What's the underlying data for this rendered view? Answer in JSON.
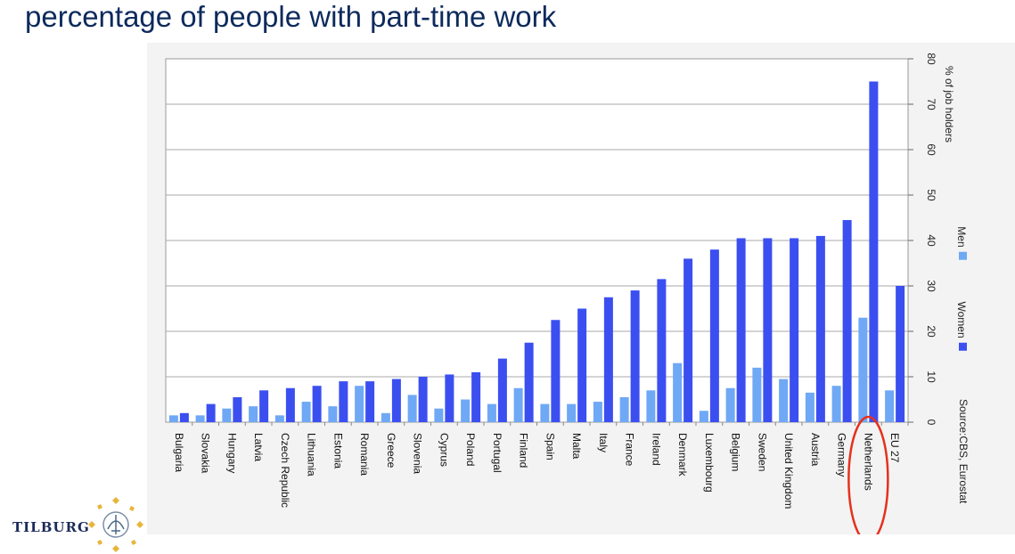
{
  "slide": {
    "title": "percentage of people with part-time work",
    "logo_text": "TILBURG"
  },
  "colors": {
    "men": "#6fa8f5",
    "women": "#3b4ff0",
    "title": "#0d2a5c",
    "highlight_circle": "#e5311d"
  },
  "chart_data": {
    "type": "bar",
    "orientation": "vertical (rotated 90°)",
    "categories": [
      "Bulgaria",
      "Slovakia",
      "Hungary",
      "Latvia",
      "Czech Republic",
      "Lithuania",
      "Estonia",
      "Romania",
      "Greece",
      "Slovenia",
      "Cyprus",
      "Poland",
      "Portugal",
      "Finland",
      "Spain",
      "Malta",
      "Italy",
      "France",
      "Ireland",
      "Denmark",
      "Luxembourg",
      "Belgium",
      "Sweden",
      "United Kingdom",
      "Austria",
      "Germany",
      "Netherlands",
      "EU 27"
    ],
    "series": [
      {
        "name": "Men",
        "values": [
          1.5,
          1.5,
          3,
          3.5,
          1.5,
          4.5,
          3.5,
          8,
          2,
          6,
          3,
          5,
          4,
          7.5,
          4,
          4,
          4.5,
          5.5,
          7,
          13,
          2.5,
          7.5,
          12,
          9.5,
          6.5,
          8,
          23,
          7
        ]
      },
      {
        "name": "Women",
        "values": [
          2,
          4,
          5.5,
          7,
          7.5,
          8,
          9,
          9,
          9.5,
          10,
          10.5,
          11,
          14,
          17.5,
          22.5,
          25,
          27.5,
          29,
          31.5,
          36,
          38,
          40.5,
          40.5,
          40.5,
          41,
          44.5,
          75,
          30
        ]
      }
    ],
    "ylabel": "% of job holders",
    "yticks": [
      0,
      10,
      20,
      30,
      40,
      50,
      60,
      70,
      80
    ],
    "ylim": [
      0,
      80
    ],
    "grid": true,
    "legend_placement": "right",
    "source_note": "Source:CBS, Eurostat",
    "highlighted_category": "Netherlands"
  }
}
